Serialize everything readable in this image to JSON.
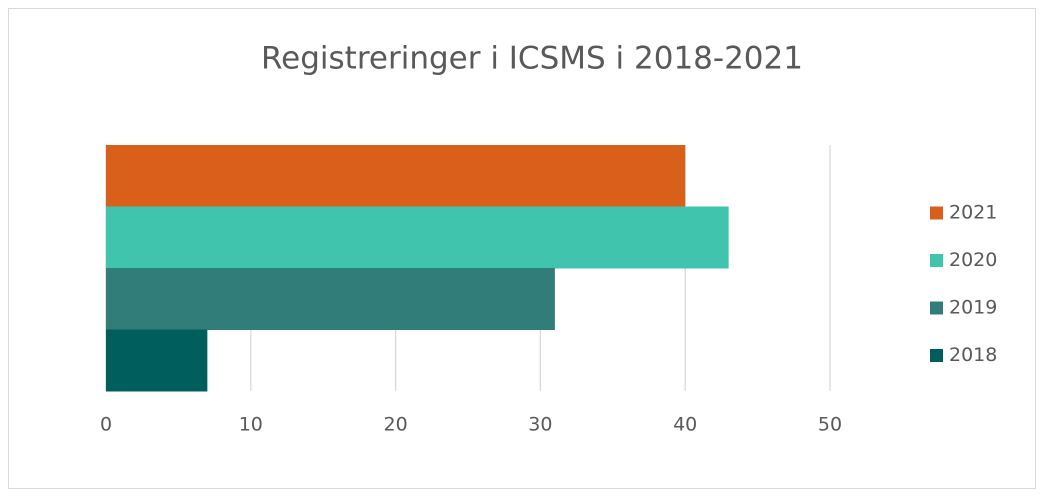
{
  "chart_data": {
    "type": "bar",
    "orientation": "horizontal",
    "title": "Registreringer i ICSMS i 2018-2021",
    "categories": [
      null
    ],
    "series": [
      {
        "name": "2021",
        "color": "#d9601a",
        "values": [
          40
        ]
      },
      {
        "name": "2020",
        "color": "#40c4ad",
        "values": [
          43
        ]
      },
      {
        "name": "2019",
        "color": "#317d7a",
        "values": [
          31
        ]
      },
      {
        "name": "2018",
        "color": "#005f5c",
        "values": [
          7
        ]
      }
    ],
    "xlim": [
      0,
      50
    ],
    "xticks": [
      0,
      10,
      20,
      30,
      40,
      50
    ],
    "grid": true,
    "legend": "right"
  }
}
